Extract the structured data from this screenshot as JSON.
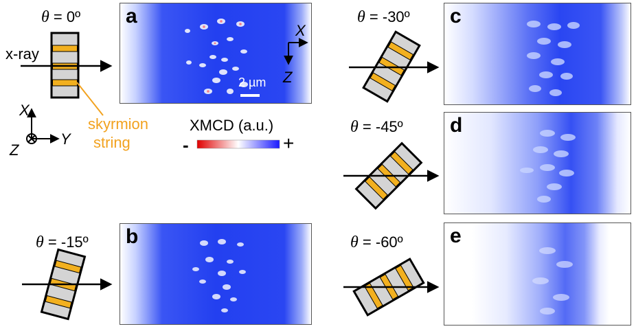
{
  "figure": {
    "angles": [
      {
        "symbol": "θ",
        "value": " = 0º"
      },
      {
        "symbol": "θ",
        "value": " = -15º"
      },
      {
        "symbol": "θ",
        "value": " = -30º"
      },
      {
        "symbol": "θ",
        "value": " = -45º"
      },
      {
        "symbol": "θ",
        "value": " = -60º"
      }
    ],
    "panel_labels": [
      "a",
      "b",
      "c",
      "d",
      "e"
    ],
    "xray_label": "x-ray",
    "skyrmion_label_line1": "skyrmion",
    "skyrmion_label_line2": "string",
    "scale_bar": "2 µm",
    "axes": {
      "x": "X",
      "y": "Y",
      "z": "Z"
    },
    "colorbar": {
      "title": "XMCD (a.u.)",
      "minus": "-",
      "plus": "+",
      "colors": [
        "#e00000",
        "#ffffff",
        "#1a1aff"
      ]
    },
    "colors": {
      "blue": "#1f3cf0",
      "orange": "#f2b01f",
      "gray": "#d4d4d4"
    }
  }
}
